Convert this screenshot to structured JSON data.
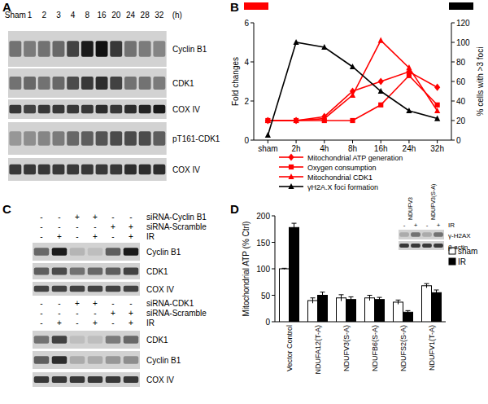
{
  "panel_labels": [
    "A",
    "B",
    "C",
    "D"
  ],
  "blot_a": {
    "lanes": [
      "Sham",
      "1",
      "2",
      "3",
      "4",
      "8",
      "16",
      "20",
      "24",
      "28",
      "32"
    ],
    "unit": "(h)",
    "rows": [
      {
        "label": "Cyclin B1",
        "intensity": [
          0.5,
          0.45,
          0.5,
          0.55,
          0.75,
          0.95,
          1,
          0.8,
          0.5,
          0.45,
          0.4
        ]
      },
      {
        "label": "CDK1",
        "intensity": [
          0.5,
          0.55,
          0.5,
          0.55,
          0.7,
          0.8,
          0.85,
          0.75,
          0.5,
          0.5,
          0.45
        ]
      },
      {
        "label": "COX IV",
        "intensity": [
          0.8,
          0.75,
          0.8,
          0.8,
          0.8,
          0.8,
          0.85,
          0.8,
          0.85,
          0.9,
          0.95
        ]
      },
      {
        "label": "pT161-CDK1",
        "intensity": [
          0.3,
          0.35,
          0.4,
          0.45,
          0.55,
          0.6,
          0.65,
          0.7,
          0.7,
          0.7,
          0.6
        ]
      },
      {
        "label": "COX IV",
        "intensity": [
          0.8,
          0.8,
          0.8,
          0.8,
          0.8,
          0.8,
          0.8,
          0.8,
          0.85,
          0.85,
          0.85
        ]
      }
    ]
  },
  "chart_data": [
    {
      "type": "line",
      "categories": [
        "sham",
        "2h",
        "4h",
        "8h",
        "16h",
        "24h",
        "32h"
      ],
      "y_label": "Fold changes",
      "y2_label": "% cells with >3 foci",
      "ylim": [
        0,
        6
      ],
      "yticks": [
        0,
        2,
        4,
        6
      ],
      "y2lim": [
        0,
        120
      ],
      "y2ticks": [
        0,
        20,
        40,
        60,
        80,
        100,
        120
      ],
      "legend": "bottom",
      "series": [
        {
          "name": "Mitochondrial ATP generation",
          "color": "#ff0000",
          "marker": "diamond",
          "values": [
            1,
            1,
            1.2,
            2.5,
            3,
            3.5,
            2.7
          ]
        },
        {
          "name": "Oxygen consumption",
          "color": "#ff0000",
          "marker": "square",
          "values": [
            1,
            1,
            1,
            1,
            1.8,
            3.3,
            1.8
          ]
        },
        {
          "name": "Mitochondrial CDK1",
          "color": "#ff0000",
          "marker": "triangle",
          "values": [
            1,
            1,
            1.1,
            2.3,
            5.1,
            3.7,
            1.5
          ]
        },
        {
          "name": "γH2A.X foci formation",
          "color": "#000000",
          "marker": "triangle",
          "axis": "y2",
          "values": [
            5,
            100,
            95,
            75,
            50,
            30,
            22
          ]
        }
      ]
    },
    {
      "type": "bar",
      "y_label": "Mitochondrial ATP (% Ctrl)",
      "categories": [
        "Vector Control",
        "NDUFA12(T-A)",
        "NDUFV3(S-A)",
        "NDUFB6(S-A)",
        "NDUFS2(S-A)",
        "NDUFV1(T-A)"
      ],
      "ylim": [
        0,
        200
      ],
      "yticks": [
        0,
        50,
        100,
        150,
        200
      ],
      "legend": "right",
      "series": [
        {
          "name": "sham",
          "color": "#ffffff",
          "values": [
            100,
            40,
            45,
            45,
            37,
            68
          ],
          "errors": [
            1,
            5,
            6,
            5,
            4,
            4
          ]
        },
        {
          "name": "IR",
          "color": "#000000",
          "values": [
            178,
            50,
            42,
            42,
            18,
            55
          ],
          "errors": [
            8,
            6,
            5,
            4,
            3,
            5
          ]
        }
      ]
    }
  ],
  "blot_c": [
    {
      "conditions": [
        {
          "label": "siRNA-Cyclin B1",
          "signs": [
            "-",
            "-",
            "+",
            "+",
            "-",
            "-"
          ]
        },
        {
          "label": "siRNA-Scramble",
          "signs": [
            "-",
            "-",
            "-",
            "-",
            "+",
            "+"
          ]
        },
        {
          "label": "IR",
          "signs": [
            "-",
            "+",
            "-",
            "+",
            "-",
            "+"
          ]
        }
      ],
      "rows": [
        {
          "label": "Cyclin B1",
          "intensity": [
            0.55,
            0.95,
            0.15,
            0.1,
            0.6,
            0.95
          ]
        },
        {
          "label": "CDK1",
          "intensity": [
            0.6,
            0.7,
            0.5,
            0.55,
            0.6,
            0.75
          ]
        },
        {
          "label": "COX IV",
          "intensity": [
            0.75,
            0.75,
            0.75,
            0.75,
            0.75,
            0.75
          ]
        }
      ]
    },
    {
      "conditions": [
        {
          "label": "siRNA-CDK1",
          "signs": [
            "-",
            "-",
            "+",
            "+",
            "-",
            "-"
          ]
        },
        {
          "label": "siRNA-Scramble",
          "signs": [
            "-",
            "-",
            "-",
            "-",
            "+",
            "+"
          ]
        },
        {
          "label": "IR",
          "signs": [
            "-",
            "+",
            "-",
            "+",
            "-",
            "+"
          ]
        }
      ],
      "rows": [
        {
          "label": "CDK1",
          "intensity": [
            0.5,
            0.75,
            0.1,
            0.1,
            0.45,
            0.55
          ]
        },
        {
          "label": "Cyclin B1",
          "intensity": [
            0.6,
            0.85,
            0.2,
            0.2,
            0.3,
            0.35
          ]
        },
        {
          "label": "COX IV",
          "intensity": [
            0.8,
            0.8,
            0.8,
            0.8,
            0.8,
            0.8
          ]
        }
      ]
    }
  ],
  "inset_d": {
    "columns": [
      "NDUFV3",
      "NDUFV3(S-A)"
    ],
    "conditions": [
      {
        "label": "IR",
        "signs": [
          "-",
          "+",
          "-",
          "+"
        ]
      }
    ],
    "rows": [
      {
        "label": "γ-H2AX",
        "intensity": [
          0.2,
          0.5,
          0.2,
          0.5
        ]
      },
      {
        "label": "β-actin",
        "intensity": [
          0.8,
          0.8,
          0.8,
          0.8
        ]
      }
    ]
  }
}
